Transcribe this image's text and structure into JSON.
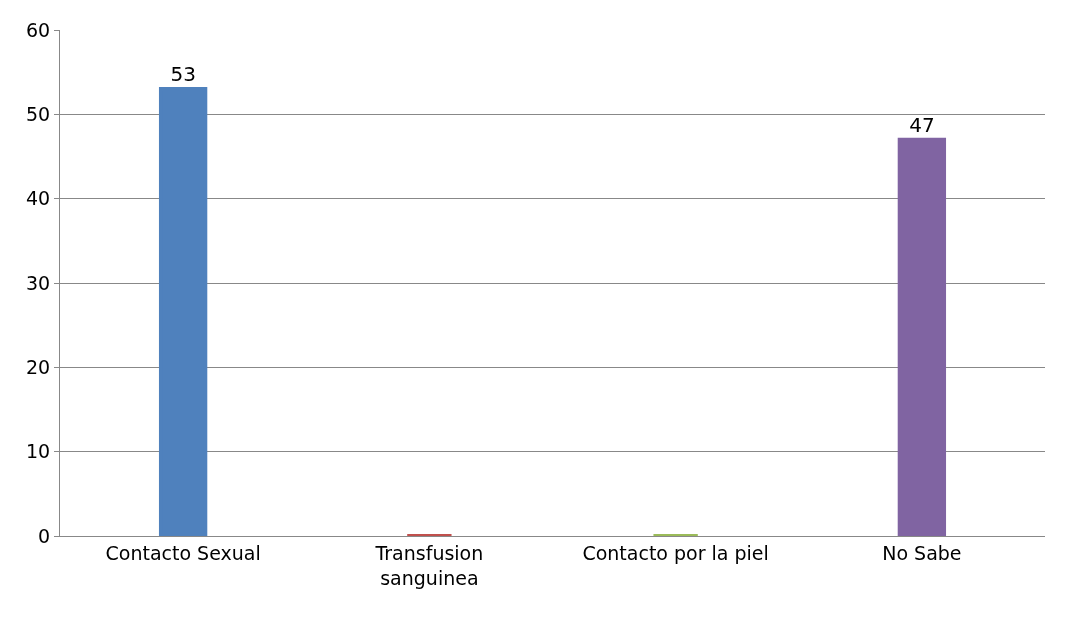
{
  "chart_data": {
    "type": "bar",
    "categories": [
      "Contacto Sexual",
      "Transfusion sanguinea",
      "Contacto por la piel",
      "No Sabe"
    ],
    "values": [
      53,
      0,
      0,
      47
    ],
    "colors": [
      "#4f81bd",
      "#c0504d",
      "#9bbb59",
      "#8064a2"
    ],
    "value_labels": [
      "53",
      null,
      null,
      "47"
    ],
    "ylim": [
      0,
      60
    ],
    "yticks": [
      0,
      10,
      20,
      30,
      40,
      50,
      60
    ],
    "grid": "y",
    "legend": false
  }
}
